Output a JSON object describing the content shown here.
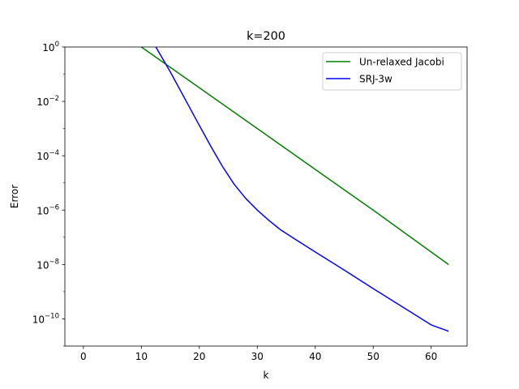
{
  "chart_data": {
    "type": "line",
    "title": "k=200",
    "xlabel": "k",
    "ylabel": "Error",
    "xlim": [
      -3.2,
      66.2
    ],
    "ylim": [
      1e-11,
      1
    ],
    "yscale": "log",
    "grid": false,
    "legend_position": "upper right",
    "x_ticks": [
      0,
      10,
      20,
      30,
      40,
      50,
      60
    ],
    "x_tick_labels": [
      "0",
      "10",
      "20",
      "30",
      "40",
      "50",
      "60"
    ],
    "y_ticks": [
      {
        "base": "10",
        "exp": "−10",
        "value": 1e-10
      },
      {
        "base": "10",
        "exp": "−8",
        "value": 1e-08
      },
      {
        "base": "10",
        "exp": "−6",
        "value": 1e-06
      },
      {
        "base": "10",
        "exp": "−4",
        "value": 0.0001
      },
      {
        "base": "10",
        "exp": "−2",
        "value": 0.01
      },
      {
        "base": "10",
        "exp": "0",
        "value": 1
      }
    ],
    "series": [
      {
        "name": "Un-relaxed Jacobi",
        "color": "#008000",
        "x": [
          0,
          10,
          20,
          30,
          40,
          50,
          63
        ],
        "y": [
          31.6,
          1.0,
          0.0316,
          0.001,
          3.16e-05,
          1e-06,
          1e-08
        ]
      },
      {
        "name": "SRJ-3w",
        "color": "#0000ff",
        "x": [
          12.5,
          15,
          18,
          20,
          22,
          24,
          26,
          28,
          30,
          32,
          34,
          36,
          40,
          45,
          50,
          55,
          60,
          63
        ],
        "y": [
          1.0,
          0.12,
          0.008,
          0.0013,
          0.00022,
          4e-05,
          9e-06,
          2.7e-06,
          1e-06,
          4.2e-07,
          1.9e-07,
          1e-07,
          2.9e-08,
          6.2e-09,
          1.3e-09,
          2.8e-10,
          6e-11,
          3.5e-11
        ]
      }
    ]
  }
}
